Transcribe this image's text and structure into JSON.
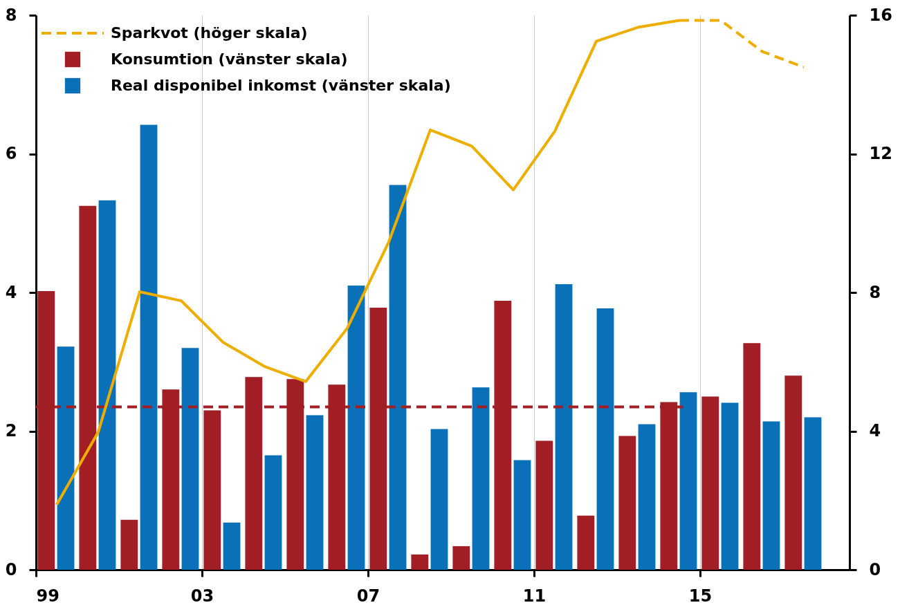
{
  "chart_data": {
    "type": "bar",
    "x": [
      1999.5,
      2000.5,
      2001.5,
      2002.5,
      2003.5,
      2004.5,
      2005.5,
      2006.5,
      2007.5,
      2008.5,
      2009.5,
      2010.5,
      2011.5,
      2012.5,
      2013.5,
      2014.5,
      2015.5,
      2016.5,
      2017.5
    ],
    "series": [
      {
        "name": "Sparkvot (höger skala)",
        "type": "line",
        "axis": "y2",
        "line_style": "dashed",
        "color": "#eeae00",
        "x": [
          2014.5,
          2015.5,
          2016.5,
          2017.5
        ],
        "values": [
          15.85,
          15.85,
          14.95,
          14.5
        ]
      },
      {
        "name": "Konsumtion (vänster skala)",
        "color": "#a21e25",
        "values": [
          4.02,
          5.25,
          0.72,
          2.6,
          2.3,
          2.78,
          2.75,
          2.67,
          3.78,
          0.22,
          0.34,
          3.88,
          1.86,
          0.78,
          1.93,
          2.42,
          2.5,
          3.27,
          2.8
        ]
      },
      {
        "name": "Real disponibel inkomst (vänster skala)",
        "color": "#0a70b8",
        "values": [
          3.22,
          5.33,
          6.42,
          3.2,
          0.68,
          1.65,
          2.23,
          4.1,
          5.55,
          2.03,
          2.63,
          1.58,
          4.12,
          3.77,
          2.1,
          2.56,
          2.41,
          2.14,
          2.2
        ]
      },
      {
        "type": "line",
        "axis": "y2",
        "line_style": "solid",
        "color": "#eeae00",
        "x": [
          1999.5,
          2000.5,
          2001.5,
          2002.5,
          2003.5,
          2004.5,
          2005.5,
          2006.5,
          2007.5,
          2008.5,
          2009.5,
          2010.5,
          2011.5,
          2012.5,
          2013.5,
          2014.5
        ],
        "values": [
          1.88,
          3.97,
          8.02,
          7.76,
          6.57,
          5.87,
          5.43,
          6.97,
          9.46,
          12.69,
          12.22,
          10.96,
          12.65,
          15.25,
          15.65,
          15.85
        ]
      },
      {
        "type": "line",
        "axis": "y",
        "line_style": "dashed",
        "color": "#a21e25",
        "x": [
          1999,
          2014.6
        ],
        "values": [
          2.35,
          2.35
        ]
      }
    ],
    "xlim": [
      1999,
      2018.6
    ],
    "xticks": [
      {
        "value": 1999,
        "label": "99"
      },
      {
        "value": 2003,
        "label": "03"
      },
      {
        "value": 2007,
        "label": "07"
      },
      {
        "value": 2011,
        "label": "11"
      },
      {
        "value": 2015,
        "label": "15"
      }
    ],
    "ylim": [
      0,
      8
    ],
    "yticks": [
      0,
      2,
      4,
      6,
      8
    ],
    "y2lim": [
      0,
      16
    ],
    "y2ticks": [
      0,
      4,
      8,
      12,
      16
    ],
    "grid": "x",
    "legend": "top left"
  }
}
